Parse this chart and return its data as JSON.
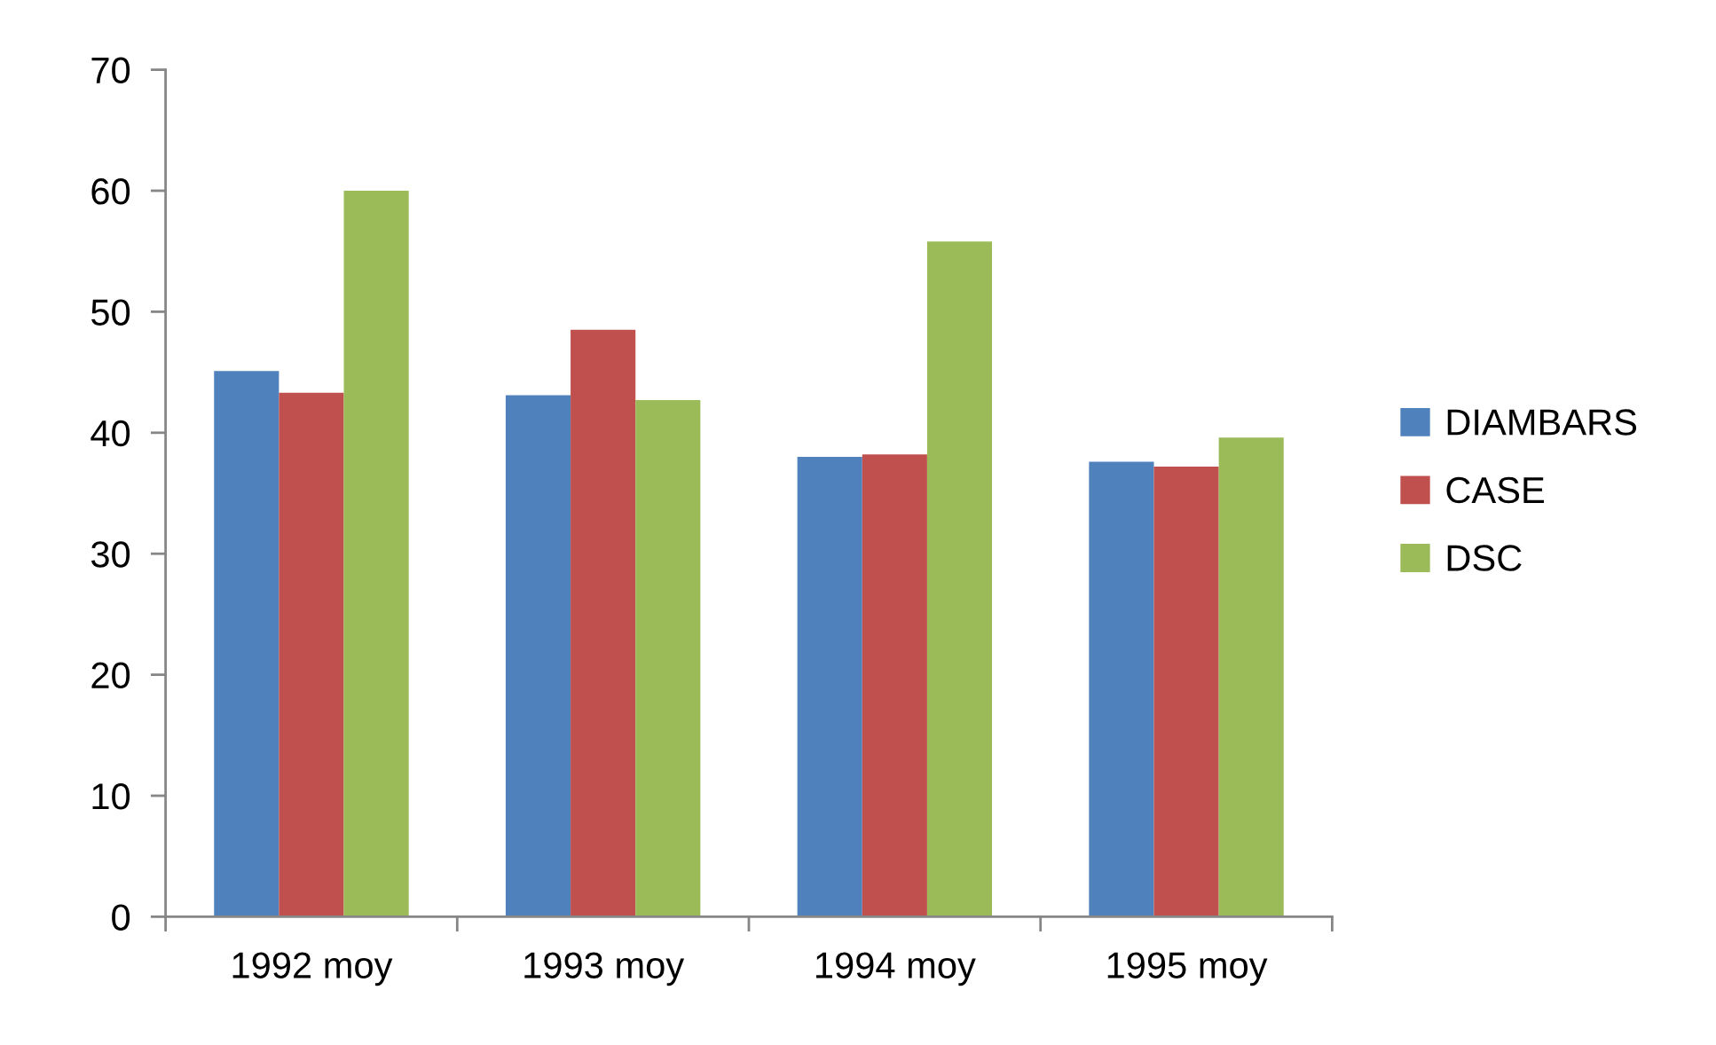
{
  "chart_data": {
    "type": "bar",
    "categories": [
      "1992 moy",
      "1993 moy",
      "1994 moy",
      "1995 moy"
    ],
    "series": [
      {
        "name": "DIAMBARS",
        "color": "#4f81bd",
        "values": [
          45.1,
          43.1,
          38.0,
          37.6
        ]
      },
      {
        "name": "CASE",
        "color": "#c0504d",
        "values": [
          43.3,
          48.5,
          38.2,
          37.2
        ]
      },
      {
        "name": "DSC",
        "color": "#9bbb59",
        "values": [
          60.0,
          42.7,
          55.8,
          39.6
        ]
      }
    ],
    "ylim": [
      0,
      70
    ],
    "yticks": [
      0,
      10,
      20,
      30,
      40,
      50,
      60,
      70
    ],
    "grid": false,
    "legend": "right"
  }
}
